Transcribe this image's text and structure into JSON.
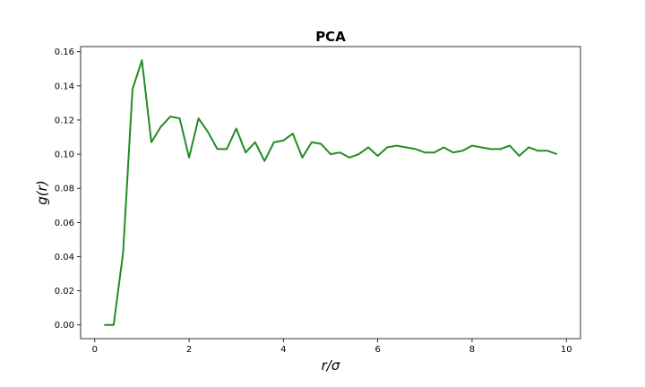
{
  "chart_data": {
    "type": "line",
    "title": "PCA",
    "xlabel": "r/σ",
    "ylabel": "g(r)",
    "xlim": [
      -0.3,
      10.3
    ],
    "ylim": [
      -0.008,
      0.163
    ],
    "xticks": [
      0,
      2,
      4,
      6,
      8,
      10
    ],
    "yticks": [
      0.0,
      0.02,
      0.04,
      0.06,
      0.08,
      0.1,
      0.12,
      0.14,
      0.16
    ],
    "xtick_labels": [
      "0",
      "2",
      "4",
      "6",
      "8",
      "10"
    ],
    "ytick_labels": [
      "0.00",
      "0.02",
      "0.04",
      "0.06",
      "0.08",
      "0.10",
      "0.12",
      "0.14",
      "0.16"
    ],
    "grid": false,
    "series": [
      {
        "color": "#228b22",
        "x": [
          0.2,
          0.4,
          0.6,
          0.8,
          1.0,
          1.2,
          1.4,
          1.6,
          1.8,
          2.0,
          2.2,
          2.4,
          2.6,
          2.8,
          3.0,
          3.2,
          3.4,
          3.6,
          3.8,
          4.0,
          4.2,
          4.4,
          4.6,
          4.8,
          5.0,
          5.2,
          5.4,
          5.6,
          5.8,
          6.0,
          6.2,
          6.4,
          6.6,
          6.8,
          7.0,
          7.2,
          7.4,
          7.6,
          7.8,
          8.0,
          8.2,
          8.4,
          8.6,
          8.8,
          9.0,
          9.2,
          9.4,
          9.6,
          9.8
        ],
        "y": [
          0.0,
          0.0,
          0.042,
          0.138,
          0.155,
          0.107,
          0.116,
          0.122,
          0.121,
          0.098,
          0.121,
          0.113,
          0.103,
          0.103,
          0.115,
          0.101,
          0.107,
          0.096,
          0.107,
          0.108,
          0.112,
          0.098,
          0.107,
          0.106,
          0.1,
          0.101,
          0.098,
          0.1,
          0.104,
          0.099,
          0.104,
          0.105,
          0.104,
          0.103,
          0.101,
          0.101,
          0.104,
          0.101,
          0.102,
          0.105,
          0.104,
          0.103,
          0.103,
          0.105,
          0.099,
          0.104,
          0.102,
          0.102,
          0.1
        ]
      }
    ]
  }
}
